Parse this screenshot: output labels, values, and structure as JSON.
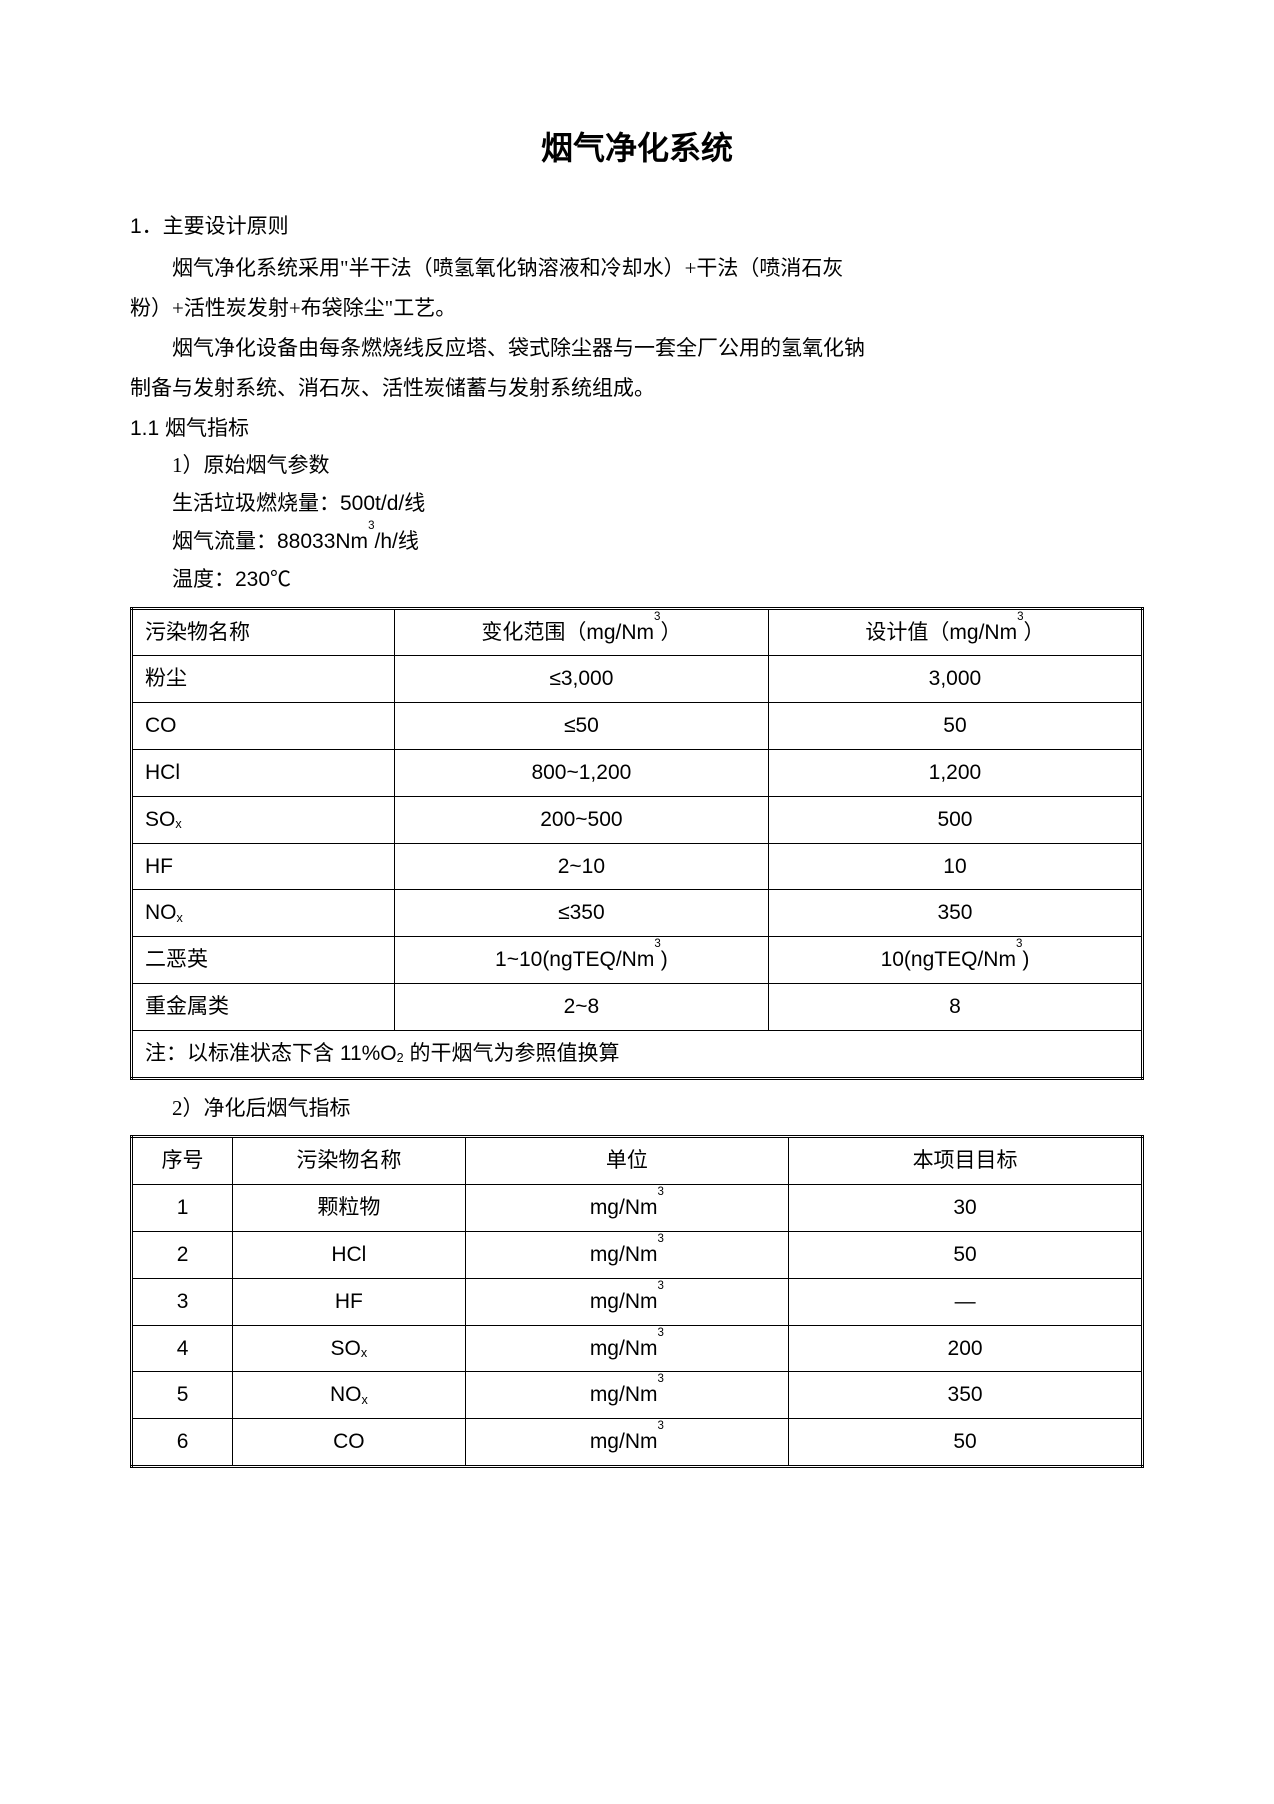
{
  "title": "烟气净化系统",
  "section1": {
    "heading": "1．主要设计原则",
    "para1": "烟气净化系统采用\"半干法（喷氢氧化钠溶液和冷却水）+干法（喷消石灰",
    "para1cont": "粉）+活性炭发射+布袋除尘\"工艺。",
    "para2": "烟气净化设备由每条燃烧线反应塔、袋式除尘器与一套全厂公用的氢氧化钠",
    "para2cont": "制备与发射系统、消石灰、活性炭储蓄与发射系统组成。"
  },
  "sub11": {
    "heading": "1.1 烟气指标",
    "item1": "1）原始烟气参数",
    "burn": "生活垃圾燃烧量：500t/d/线",
    "flow_label": "烟气流量：88033Nm",
    "flow_sup": "3",
    "flow_suffix": "/h/线",
    "temp": "温度：230℃"
  },
  "table1": {
    "headers": {
      "col1": "污染物名称",
      "col2_pre": "变化范围（mg/Nm",
      "col2_sup": "3",
      "col2_suf": "）",
      "col3_pre": "设计值（mg/Nm",
      "col3_sup": "3",
      "col3_suf": "）"
    },
    "rows": [
      {
        "name": "粉尘",
        "range": "≤3,000",
        "design": "3,000"
      },
      {
        "name": "CO",
        "range": "≤50",
        "design": "50"
      },
      {
        "name": "HCl",
        "range": "800~1,200",
        "design": "1,200"
      },
      {
        "name_html": "SOx",
        "name": "SO",
        "sub": "x",
        "range": "200~500",
        "design": "500"
      },
      {
        "name": "HF",
        "range": "2~10",
        "design": "10"
      },
      {
        "name_html": "NOx",
        "name": "NO",
        "sub": "x",
        "range": "≤350",
        "design": "350"
      },
      {
        "name": "二恶英",
        "range_pre": "1~10(ngTEQ/Nm",
        "range_sup": "3",
        "range_suf": ")",
        "design_pre": "10(ngTEQ/Nm",
        "design_sup": "3",
        "design_suf": ")"
      },
      {
        "name": "重金属类",
        "range": "2~8",
        "design": "8"
      }
    ],
    "note_pre": "注：以标准状态下含 11%O",
    "note_sub": "2",
    "note_suf": " 的干烟气为参照值换算"
  },
  "item2": "2）净化后烟气指标",
  "table2": {
    "headers": {
      "col1": "序号",
      "col2": "污染物名称",
      "col3": "单位",
      "col4": "本项目目标"
    },
    "unit_pre": "mg/Nm",
    "unit_sup": "3",
    "rows": [
      {
        "no": "1",
        "name": "颗粒物",
        "target": "30"
      },
      {
        "no": "2",
        "name": "HCl",
        "target": "50"
      },
      {
        "no": "3",
        "name": "HF",
        "target": "—"
      },
      {
        "no": "4",
        "name": "SO",
        "sub": "x",
        "target": "200"
      },
      {
        "no": "5",
        "name": "NO",
        "sub": "x",
        "target": "350"
      },
      {
        "no": "6",
        "name": "CO",
        "target": "50"
      }
    ]
  }
}
